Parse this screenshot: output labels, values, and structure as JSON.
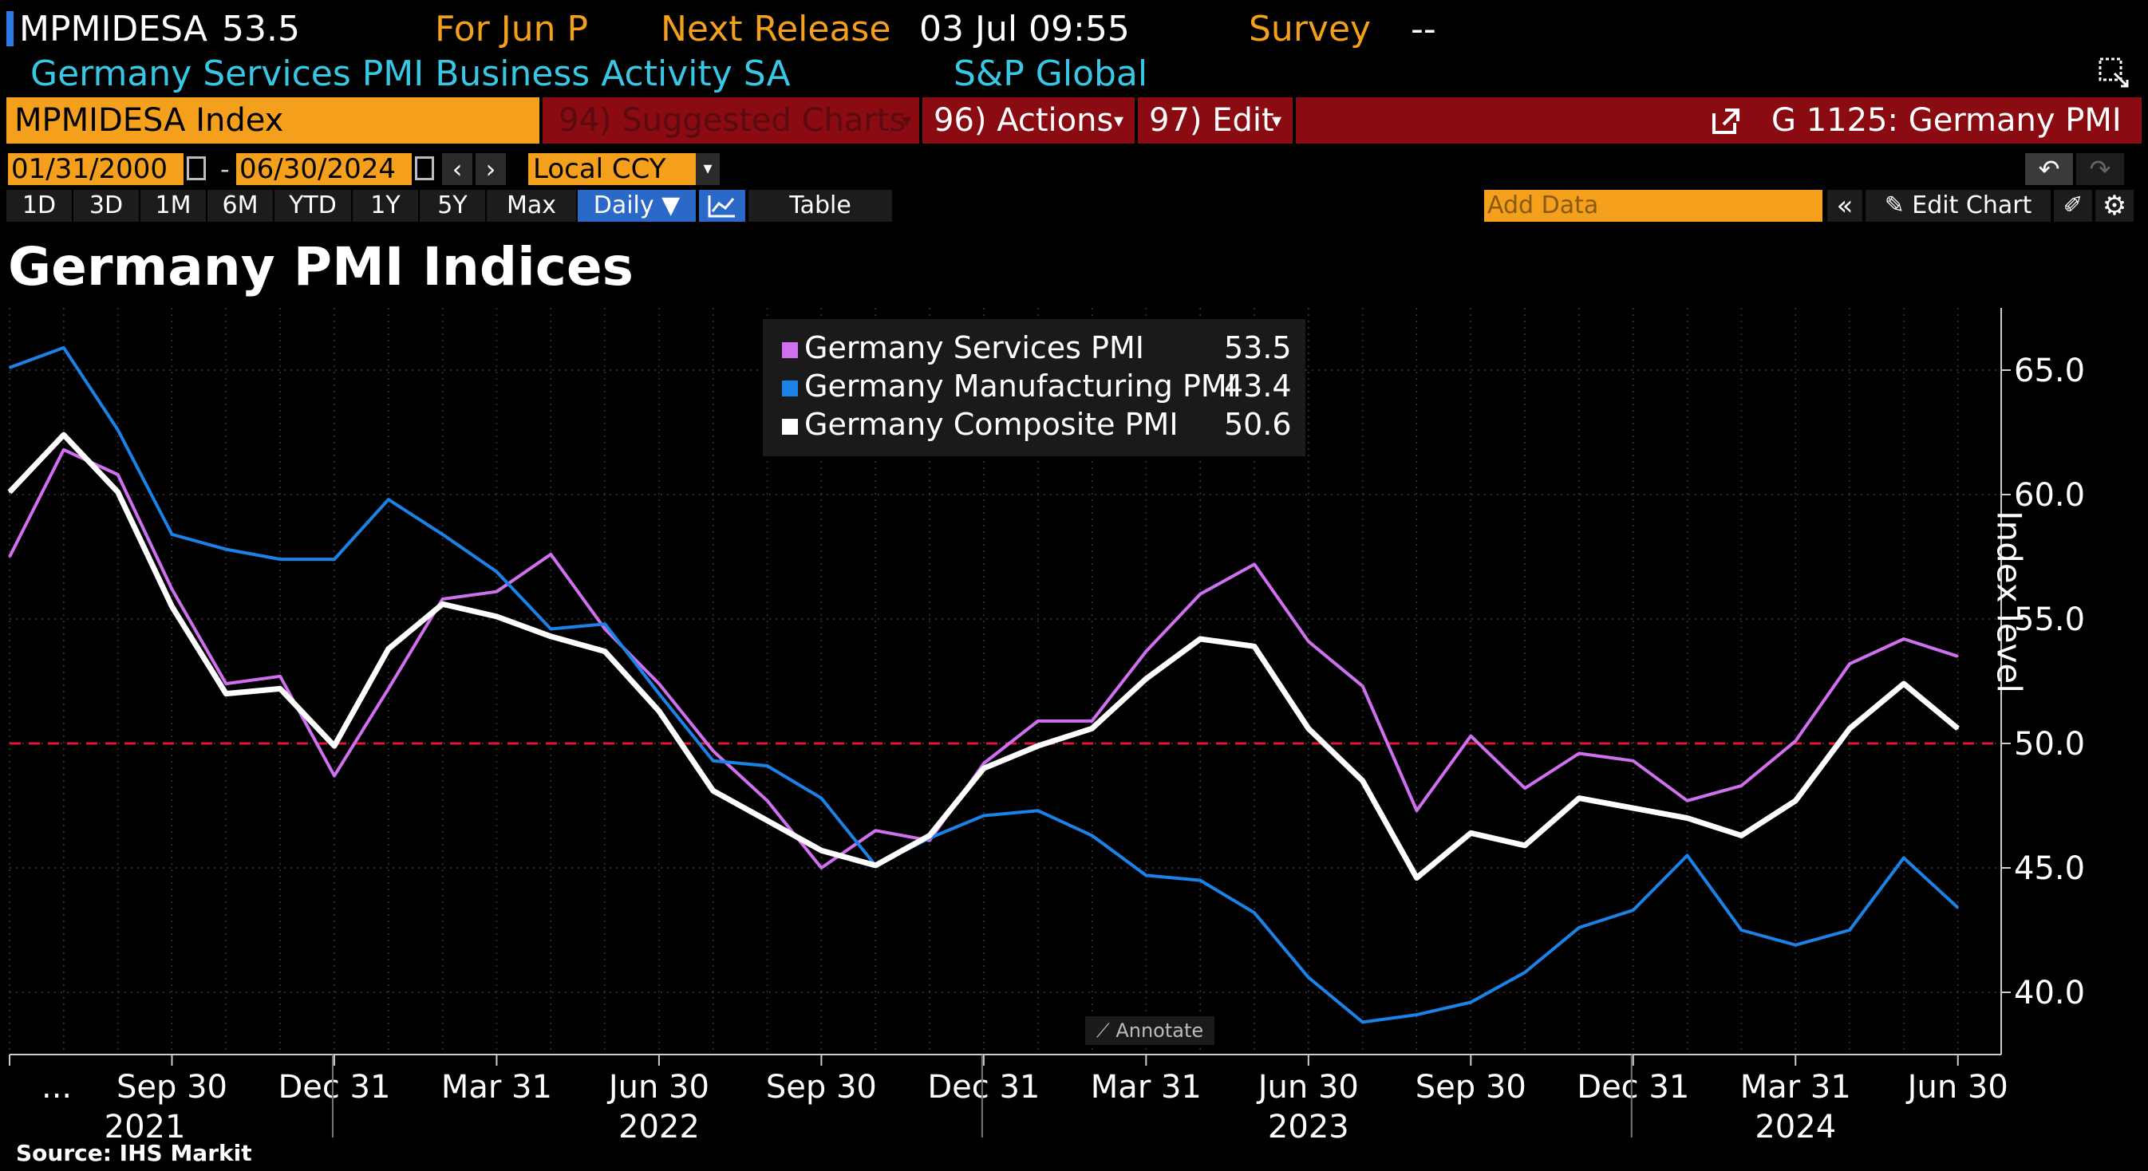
{
  "header": {
    "ticker": "MPMIDESA",
    "last_value": "53.5",
    "period": "For Jun P",
    "next_release_label": "Next Release",
    "next_release_value": "03 Jul 09:55",
    "survey_label": "Survey",
    "survey_value": "--",
    "description": "Germany Services PMI Business Activity SA",
    "source_org": "S&P Global"
  },
  "command_bar": {
    "security": "MPMIDESA Index",
    "suggested": "94) Suggested Charts",
    "actions": "96) Actions",
    "edit": "97) Edit",
    "chart_id": "G 1125: Germany PMI"
  },
  "date_bar": {
    "start_date": "01/31/2000",
    "separator": "-",
    "end_date": "06/30/2024",
    "currency": "Local CCY"
  },
  "range_bar": {
    "ranges": [
      "1D",
      "3D",
      "1M",
      "6M",
      "YTD",
      "1Y",
      "5Y",
      "Max"
    ],
    "frequency": "Daily ▼",
    "table_label": "Table",
    "add_data_placeholder": "Add Data",
    "edit_chart_label": "Edit Chart"
  },
  "colors": {
    "services": "#d070f0",
    "manufacturing": "#1b82e8",
    "composite": "#ffffff",
    "threshold": "#e0182f",
    "bar_red": "#8a0b12",
    "accent_orange": "#f5a01d"
  },
  "chart_data": {
    "type": "line",
    "title": "Germany PMI Indices",
    "ylabel": "Index level",
    "xlabel": "",
    "ylim": [
      37.5,
      67.5
    ],
    "yticks": [
      "65.0",
      "60.0",
      "55.0",
      "50.0",
      "45.0",
      "40.0"
    ],
    "ytick_values": [
      65,
      60,
      55,
      50,
      45,
      40
    ],
    "reference_line": 50,
    "x_tick_labels": [
      "...",
      "Sep 30",
      "Dec 31",
      "Mar 31",
      "Jun 30",
      "Sep 30",
      "Dec 31",
      "Mar 31",
      "Jun 30",
      "Sep 30",
      "Dec 31",
      "Mar 31",
      "Jun 30"
    ],
    "x_tick_months": [
      0,
      3,
      6,
      9,
      12,
      15,
      18,
      21,
      24,
      27,
      30,
      33,
      36
    ],
    "year_labels": [
      "2021",
      "2022",
      "2023",
      "2024"
    ],
    "year_label_months": [
      2.5,
      12,
      24,
      33
    ],
    "year_dividers": [
      6,
      18,
      30
    ],
    "x_months": [
      0,
      1,
      2,
      3,
      4,
      5,
      6,
      7,
      8,
      9,
      10,
      11,
      12,
      13,
      14,
      15,
      16,
      17,
      18,
      19,
      20,
      21,
      22,
      23,
      24,
      25,
      26,
      27,
      28,
      29,
      30,
      31,
      32,
      33,
      34,
      35,
      36
    ],
    "x_range": [
      0,
      36.8
    ],
    "series": [
      {
        "name": "Germany Services PMI",
        "last": "53.5",
        "values": [
          57.5,
          61.8,
          60.8,
          56.2,
          52.4,
          52.7,
          48.7,
          52.2,
          55.8,
          56.1,
          57.6,
          54.6,
          52.4,
          49.7,
          47.7,
          45.0,
          46.5,
          46.1,
          49.2,
          50.9,
          50.9,
          53.7,
          56.0,
          57.2,
          54.1,
          52.3,
          47.3,
          50.3,
          48.2,
          49.6,
          49.3,
          47.7,
          48.3,
          50.1,
          53.2,
          54.2,
          53.5
        ]
      },
      {
        "name": "Germany Manufacturing PMI",
        "last": "43.4",
        "values": [
          65.1,
          65.9,
          62.6,
          58.4,
          57.8,
          57.4,
          57.4,
          59.8,
          58.4,
          56.9,
          54.6,
          54.8,
          52.0,
          49.3,
          49.1,
          47.8,
          45.1,
          46.2,
          47.1,
          47.3,
          46.3,
          44.7,
          44.5,
          43.2,
          40.6,
          38.8,
          39.1,
          39.6,
          40.8,
          42.6,
          43.3,
          45.5,
          42.5,
          41.9,
          42.5,
          45.4,
          43.4
        ]
      },
      {
        "name": "Germany Composite PMI",
        "last": "50.6",
        "values": [
          60.1,
          62.4,
          60.1,
          55.5,
          52.0,
          52.2,
          49.9,
          53.8,
          55.6,
          55.1,
          54.3,
          53.7,
          51.3,
          48.1,
          46.9,
          45.7,
          45.1,
          46.3,
          49.0,
          49.9,
          50.6,
          52.6,
          54.2,
          53.9,
          50.6,
          48.5,
          44.6,
          46.4,
          45.9,
          47.8,
          47.4,
          47.0,
          46.3,
          47.7,
          50.6,
          52.4,
          50.6
        ]
      }
    ],
    "annotate_label": "Annotate",
    "source_note": "Source: IHS Markit"
  }
}
